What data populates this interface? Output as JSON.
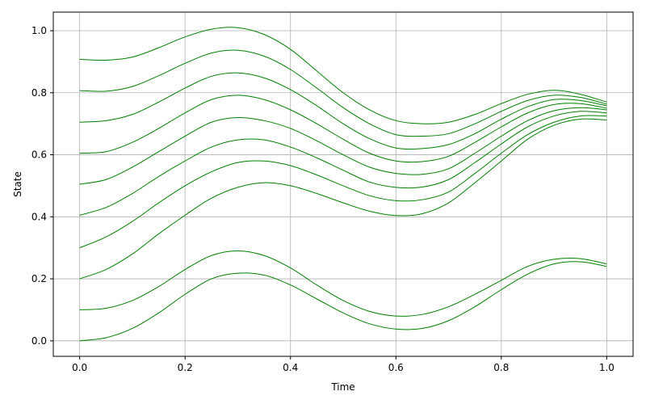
{
  "chart_data": {
    "type": "line",
    "title": "",
    "xlabel": "Time",
    "ylabel": "State",
    "xlim": [
      -0.05,
      1.05
    ],
    "ylim": [
      -0.05,
      1.06
    ],
    "xticks": [
      0.0,
      0.2,
      0.4,
      0.6,
      0.8,
      1.0
    ],
    "xtick_labels": [
      "0.0",
      "0.2",
      "0.4",
      "0.6",
      "0.8",
      "1.0"
    ],
    "yticks": [
      0.0,
      0.2,
      0.4,
      0.6,
      0.8,
      1.0
    ],
    "ytick_labels": [
      "0.0",
      "0.2",
      "0.4",
      "0.6",
      "0.8",
      "1.0"
    ],
    "grid": true,
    "line_color": "#008000",
    "grid_color": "#b0b0b0",
    "x": [
      0.0,
      0.05,
      0.1,
      0.15,
      0.2,
      0.25,
      0.3,
      0.35,
      0.4,
      0.45,
      0.5,
      0.55,
      0.6,
      0.65,
      0.7,
      0.75,
      0.8,
      0.85,
      0.9,
      0.95,
      1.0
    ],
    "series": [
      {
        "values": [
          0.0,
          0.01,
          0.04,
          0.09,
          0.15,
          0.2,
          0.218,
          0.212,
          0.18,
          0.135,
          0.09,
          0.055,
          0.038,
          0.04,
          0.065,
          0.11,
          0.165,
          0.215,
          0.248,
          0.255,
          0.24
        ]
      },
      {
        "values": [
          0.1,
          0.105,
          0.13,
          0.175,
          0.23,
          0.275,
          0.29,
          0.275,
          0.235,
          0.18,
          0.13,
          0.095,
          0.08,
          0.085,
          0.11,
          0.15,
          0.195,
          0.24,
          0.263,
          0.265,
          0.248
        ]
      },
      {
        "values": [
          0.2,
          0.23,
          0.28,
          0.345,
          0.405,
          0.46,
          0.495,
          0.51,
          0.5,
          0.475,
          0.445,
          0.418,
          0.404,
          0.41,
          0.445,
          0.51,
          0.58,
          0.65,
          0.695,
          0.715,
          0.712
        ]
      },
      {
        "values": [
          0.3,
          0.335,
          0.385,
          0.445,
          0.5,
          0.545,
          0.575,
          0.58,
          0.565,
          0.535,
          0.5,
          0.468,
          0.452,
          0.455,
          0.48,
          0.54,
          0.605,
          0.665,
          0.705,
          0.725,
          0.725
        ]
      },
      {
        "values": [
          0.405,
          0.43,
          0.475,
          0.53,
          0.58,
          0.625,
          0.648,
          0.648,
          0.625,
          0.59,
          0.55,
          0.512,
          0.495,
          0.496,
          0.52,
          0.575,
          0.635,
          0.69,
          0.725,
          0.74,
          0.735
        ]
      },
      {
        "values": [
          0.505,
          0.52,
          0.56,
          0.61,
          0.66,
          0.705,
          0.72,
          0.71,
          0.685,
          0.645,
          0.6,
          0.56,
          0.54,
          0.537,
          0.555,
          0.605,
          0.66,
          0.71,
          0.742,
          0.752,
          0.745
        ]
      },
      {
        "values": [
          0.605,
          0.61,
          0.64,
          0.685,
          0.735,
          0.778,
          0.792,
          0.778,
          0.745,
          0.7,
          0.65,
          0.605,
          0.58,
          0.578,
          0.595,
          0.64,
          0.69,
          0.735,
          0.762,
          0.765,
          0.75
        ]
      },
      {
        "values": [
          0.705,
          0.71,
          0.73,
          0.77,
          0.815,
          0.853,
          0.864,
          0.848,
          0.81,
          0.758,
          0.7,
          0.652,
          0.622,
          0.62,
          0.633,
          0.668,
          0.715,
          0.755,
          0.778,
          0.775,
          0.758
        ]
      },
      {
        "values": [
          0.807,
          0.805,
          0.82,
          0.855,
          0.895,
          0.928,
          0.937,
          0.918,
          0.875,
          0.815,
          0.752,
          0.7,
          0.665,
          0.66,
          0.668,
          0.7,
          0.74,
          0.775,
          0.792,
          0.785,
          0.763
        ]
      },
      {
        "values": [
          0.908,
          0.905,
          0.915,
          0.945,
          0.98,
          1.005,
          1.01,
          0.988,
          0.94,
          0.87,
          0.8,
          0.745,
          0.71,
          0.7,
          0.705,
          0.73,
          0.765,
          0.795,
          0.808,
          0.795,
          0.77
        ]
      }
    ]
  }
}
